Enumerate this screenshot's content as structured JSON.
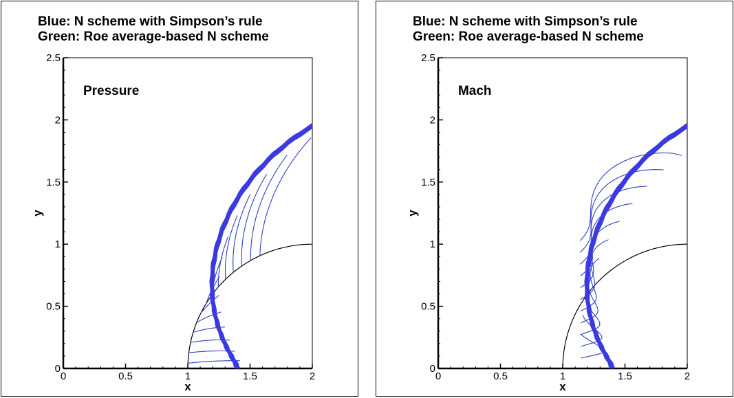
{
  "chart_data": [
    {
      "type": "contour",
      "title_lines": [
        "Blue: N scheme with Simpson’s rule",
        "Green: Roe average-based N scheme"
      ],
      "annotation": "Pressure",
      "xlabel": "x",
      "ylabel": "y",
      "xlim": [
        0,
        2
      ],
      "ylim": [
        0,
        2.5
      ],
      "xticks": [
        "0",
        "0.5",
        "1",
        "1.5",
        "2"
      ],
      "yticks": [
        "0",
        "0.5",
        "1",
        "1.5",
        "2",
        "2.5"
      ],
      "grid": false,
      "colors": {
        "blue": "#3a3ae0",
        "green": "#20b020"
      }
    },
    {
      "type": "contour",
      "title_lines": [
        "Blue: N scheme with Simpson’s rule",
        "Green: Roe average-based N scheme"
      ],
      "annotation": "Mach",
      "xlabel": "x",
      "ylabel": "y",
      "xlim": [
        0,
        2
      ],
      "ylim": [
        0,
        2.5
      ],
      "xticks": [
        "0",
        "0.5",
        "1",
        "1.5",
        "2"
      ],
      "yticks": [
        "0",
        "0.5",
        "1",
        "1.5",
        "2",
        "2.5"
      ],
      "grid": false,
      "colors": {
        "blue": "#3a3ae0",
        "green": "#20b020"
      }
    }
  ]
}
